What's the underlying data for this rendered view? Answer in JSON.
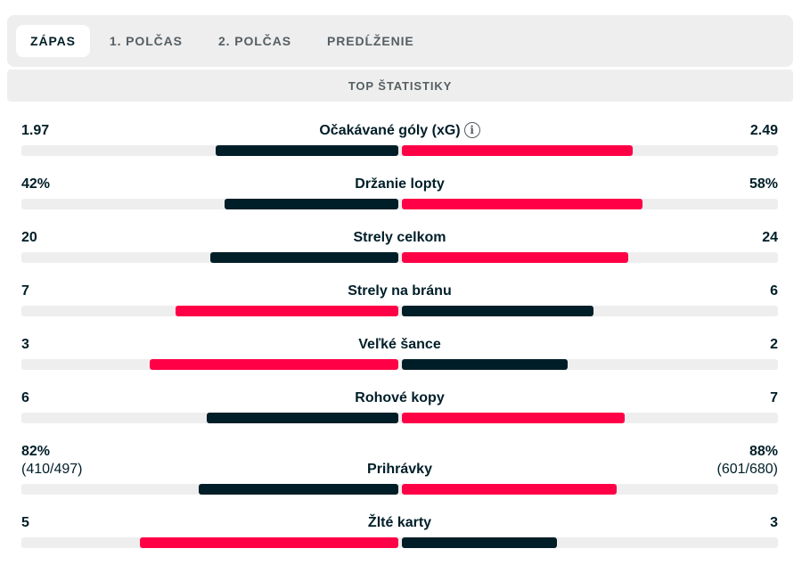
{
  "colors": {
    "dark": "#001e28",
    "red": "#ff0046",
    "track": "#eeeeee",
    "tab_bg": "#eeeeee"
  },
  "tabs": [
    {
      "label": "ZÁPAS",
      "active": true
    },
    {
      "label": "1. POLČAS",
      "active": false
    },
    {
      "label": "2. POLČAS",
      "active": false
    },
    {
      "label": "PREDĹŽENIE",
      "active": false
    }
  ],
  "section_title": "TOP ŠTATISTIKY",
  "info_icon": "info-icon",
  "stats": [
    {
      "label": "Očakávané góly (xG)",
      "home": "1.97",
      "away": "2.49",
      "home_value": 1.97,
      "away_value": 2.49,
      "has_info": true
    },
    {
      "label": "Držanie lopty",
      "home": "42%",
      "away": "58%",
      "home_value": 42,
      "away_value": 58
    },
    {
      "label": "Strely celkom",
      "home": "20",
      "away": "24",
      "home_value": 20,
      "away_value": 24
    },
    {
      "label": "Strely na bránu",
      "home": "7",
      "away": "6",
      "home_value": 7,
      "away_value": 6
    },
    {
      "label": "Veľké šance",
      "home": "3",
      "away": "2",
      "home_value": 3,
      "away_value": 2
    },
    {
      "label": "Rohové kopy",
      "home": "6",
      "away": "7",
      "home_value": 6,
      "away_value": 7
    },
    {
      "label": "Prihrávky",
      "home": "82%",
      "away": "88%",
      "home_sub": "(410/497)",
      "away_sub": "(601/680)",
      "home_value": 82,
      "away_value": 88
    },
    {
      "label": "Žlté karty",
      "home": "5",
      "away": "3",
      "home_value": 5,
      "away_value": 3
    }
  ]
}
